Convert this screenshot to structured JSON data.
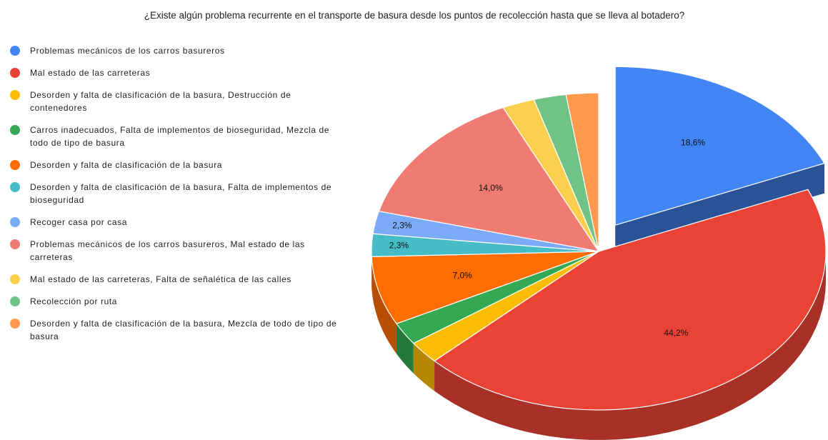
{
  "chart_data": {
    "type": "pie",
    "title": "¿Existe algún problema recurrente en el transporte de basura desde los puntos de recolección hasta que se lleva al botadero?",
    "categories": [
      "Problemas mecánicos de los carros basureros",
      "Mal estado de las carreteras",
      "Desorden y falta de clasificación de la basura, Destrucción de contenedores",
      "Carros inadecuados, Falta de implementos de bioseguridad, Mezcla de todo de tipo de basura",
      "Desorden y falta de clasificación de la basura",
      "Desorden y falta de clasificación de la basura, Falta de implementos de bioseguridad",
      "Recoger casa por casa",
      "Problemas mecánicos de los carros basureros, Mal estado de las carreteras",
      "Mal estado de las carreteras, Falta de señalética de las calles",
      "Recolección por ruta",
      "Desorden y falta de clasificación de la basura, Mezcla de todo de tipo de basura"
    ],
    "values": [
      18.6,
      44.2,
      2.3,
      2.3,
      7.0,
      2.3,
      2.3,
      14.0,
      2.3,
      2.3,
      2.3
    ],
    "value_labels": [
      "18,6%",
      "44,2%",
      null,
      null,
      "7,0%",
      "2,3%",
      "2,3%",
      "14,0%",
      null,
      null,
      null
    ],
    "colors": [
      "#4285f4",
      "#ea4335",
      "#fbbc04",
      "#34a853",
      "#ff6d01",
      "#46bdc6",
      "#7baaf7",
      "#f07b72",
      "#fcd04f",
      "#71c287",
      "#ff994d"
    ],
    "legend": "left"
  }
}
